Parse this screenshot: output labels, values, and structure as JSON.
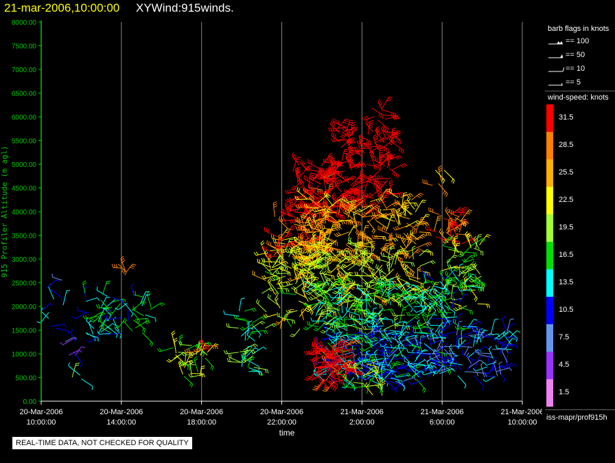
{
  "header": {
    "datetime": "21-mar-2006,10:00:00",
    "title": "XYWind:915winds."
  },
  "chart_data": {
    "type": "scatter",
    "subtype": "wind-barb time-height",
    "ylabel": "915 Profiler Altitude (m agl)",
    "xlabel": "time",
    "ylim": [
      0,
      8000
    ],
    "yticks": [
      "0.00",
      "500.00",
      "1000.00",
      "1500.00",
      "2000.00",
      "2500.00",
      "3000.00",
      "3500.00",
      "4000.00",
      "4500.00",
      "5000.00",
      "5500.00",
      "6000.00",
      "6500.00",
      "7000.00",
      "7500.00",
      "8000.00"
    ],
    "xticks": [
      {
        "hour": 0,
        "line1": "20-Mar-2006",
        "line2": "10:00:00"
      },
      {
        "hour": 4,
        "line1": "20-Mar-2006",
        "line2": "14:00:00"
      },
      {
        "hour": 8,
        "line1": "20-Mar-2006",
        "line2": "18:00:00"
      },
      {
        "hour": 12,
        "line1": "20-Mar-2006",
        "line2": "22:00:00"
      },
      {
        "hour": 16,
        "line1": "21-Mar-2006",
        "line2": "2:00:00"
      },
      {
        "hour": 20,
        "line1": "21-Mar-2006",
        "line2": "6:00:00"
      },
      {
        "hour": 24,
        "line1": "21-Mar-2006",
        "line2": "10:00:00"
      }
    ],
    "xlim_hours": [
      0,
      24
    ],
    "grid_vertical": true,
    "axis_color": "#00cc00",
    "clusters": [
      {
        "t0": 0.0,
        "t1": 1.2,
        "z0": 1500,
        "z1": 2700,
        "speed": 12,
        "n": 10
      },
      {
        "t0": 1.0,
        "t1": 2.0,
        "z0": 900,
        "z1": 1400,
        "speed": 7,
        "n": 6
      },
      {
        "t0": 1.0,
        "t1": 2.0,
        "z0": 400,
        "z1": 600,
        "speed": 18,
        "n": 3
      },
      {
        "t0": 2.0,
        "t1": 5.5,
        "z0": 1400,
        "z1": 2300,
        "speed": 14,
        "n": 55
      },
      {
        "t0": 3.8,
        "t1": 4.3,
        "z0": 2650,
        "z1": 2900,
        "speed": 32,
        "n": 4
      },
      {
        "t0": 6.5,
        "t1": 8.3,
        "z0": 500,
        "z1": 1200,
        "speed": 20,
        "n": 30
      },
      {
        "t0": 7.8,
        "t1": 8.3,
        "z0": 1000,
        "z1": 1400,
        "speed": 31,
        "n": 5
      },
      {
        "t0": 9.8,
        "t1": 10.7,
        "z0": 600,
        "z1": 1900,
        "speed": 16,
        "n": 35
      },
      {
        "t0": 11.0,
        "t1": 14.5,
        "z0": 1500,
        "z1": 3400,
        "speed": 21,
        "n": 110
      },
      {
        "t0": 11.5,
        "t1": 14.0,
        "z0": 3000,
        "z1": 4000,
        "speed": 30,
        "n": 60
      },
      {
        "t0": 12.5,
        "t1": 15.0,
        "z0": 3800,
        "z1": 5000,
        "speed": 33,
        "n": 80
      },
      {
        "t0": 14.5,
        "t1": 17.5,
        "z0": 4000,
        "z1": 5800,
        "speed": 34,
        "n": 130
      },
      {
        "t0": 16.5,
        "t1": 17.3,
        "z0": 5800,
        "z1": 6200,
        "speed": 32,
        "n": 8
      },
      {
        "t0": 13.0,
        "t1": 19.0,
        "z0": 3000,
        "z1": 4300,
        "speed": 26,
        "n": 170
      },
      {
        "t0": 13.0,
        "t1": 19.0,
        "z0": 2200,
        "z1": 3300,
        "speed": 22,
        "n": 160
      },
      {
        "t0": 13.5,
        "t1": 19.5,
        "z0": 1500,
        "z1": 2500,
        "speed": 16,
        "n": 170
      },
      {
        "t0": 14.0,
        "t1": 20.0,
        "z0": 400,
        "z1": 1500,
        "speed": 12,
        "n": 260
      },
      {
        "t0": 13.7,
        "t1": 15.3,
        "z0": 400,
        "z1": 1200,
        "speed": 33,
        "n": 70
      },
      {
        "t0": 15.5,
        "t1": 17.0,
        "z0": 100,
        "z1": 800,
        "speed": 19,
        "n": 20
      },
      {
        "t0": 19.5,
        "t1": 21.0,
        "z0": 3300,
        "z1": 4000,
        "speed": 29,
        "n": 30
      },
      {
        "t0": 19.5,
        "t1": 20.2,
        "z0": 4500,
        "z1": 4900,
        "speed": 26,
        "n": 5
      },
      {
        "t0": 20.0,
        "t1": 22.0,
        "z0": 2000,
        "z1": 3300,
        "speed": 20,
        "n": 55
      },
      {
        "t0": 20.0,
        "t1": 23.5,
        "z0": 500,
        "z1": 1500,
        "speed": 11,
        "n": 90
      },
      {
        "t0": 19.5,
        "t1": 21.5,
        "z0": 1500,
        "z1": 2800,
        "speed": 14,
        "n": 45
      }
    ]
  },
  "legend": {
    "barb_title": "barb flags in knots",
    "barbs": [
      {
        "label": "== 100",
        "kind": "flag2"
      },
      {
        "label": "== 50",
        "kind": "flag"
      },
      {
        "label": "== 10",
        "kind": "full"
      },
      {
        "label": "== 5",
        "kind": "half"
      }
    ],
    "colorbar_title": "wind-speed: knots",
    "colorbar": [
      {
        "label": "31.5",
        "color": "#ff0000"
      },
      {
        "label": "28.5",
        "color": "#ff8000"
      },
      {
        "label": "25.5",
        "color": "#ffb000"
      },
      {
        "label": "22.5",
        "color": "#ffff00"
      },
      {
        "label": "19.5",
        "color": "#a0ff30"
      },
      {
        "label": "16.5",
        "color": "#00e000"
      },
      {
        "label": "13.5",
        "color": "#00ffff"
      },
      {
        "label": "10.5",
        "color": "#0000ff"
      },
      {
        "label": "7.5",
        "color": "#6495ed"
      },
      {
        "label": "4.5",
        "color": "#9933ff"
      },
      {
        "label": "1.5",
        "color": "#ee82ee"
      }
    ],
    "source": "iss-mapr/prof915h"
  },
  "disclaimer": "REAL-TIME DATA, NOT CHECKED FOR QUALITY"
}
